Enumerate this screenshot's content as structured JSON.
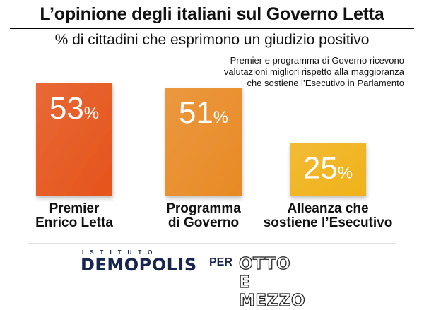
{
  "title": "L’opinione degli italiani sul Governo Letta",
  "subtitle": "% di cittadini che esprimono un giudizio positivo",
  "note": [
    "Premier e programma di Governo ricevono",
    "valutazioni migliori rispetto alla maggioranza",
    "che sostiene l’Esecutivo in Parlamento"
  ],
  "footer": {
    "istituto": "ISTITUTO",
    "demopolis": "DEMOPOLIS",
    "per": "PER",
    "ottoemezzo": "OTTO E MEZZO"
  },
  "chart_data": {
    "type": "bar",
    "title": "L’opinione degli italiani sul Governo Letta",
    "subtitle": "% di cittadini che esprimono un giudizio positivo",
    "categories": [
      "Premier Enrico Letta",
      "Programma di Governo",
      "Alleanza che sostiene l’Esecutivo"
    ],
    "category_lines": [
      [
        "Premier",
        "Enrico Letta"
      ],
      [
        "Programma",
        "di Governo"
      ],
      [
        "Alleanza che",
        "sostiene l’Esecutivo"
      ]
    ],
    "values": [
      53,
      51,
      25
    ],
    "value_suffix": "%",
    "unit": "%",
    "colors": [
      "#e5541b",
      "#e88a25",
      "#f0b21a"
    ],
    "ylim": [
      0,
      53
    ],
    "grid": false,
    "legend": "none"
  }
}
